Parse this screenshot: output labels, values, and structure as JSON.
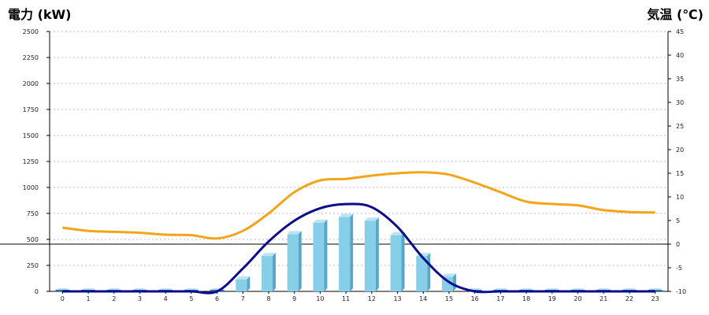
{
  "chart_data": {
    "type": "bar",
    "left_axis_label": "電力 (kW)",
    "right_axis_label": "気温 (℃)",
    "colors": {
      "left_label": "#1a66b3",
      "right_label": "#f07f1a",
      "bars": "#87cfe8",
      "bar_side": "#5aa6c6",
      "bar_top": "#b8e4f3",
      "zero_bar": "#2f6fb0",
      "power_line": "#0d0d8c",
      "temp_line": "#f5a41a",
      "grid": "#bbbbbb"
    },
    "categories": [
      "0",
      "1",
      "2",
      "3",
      "4",
      "5",
      "6",
      "7",
      "8",
      "9",
      "10",
      "11",
      "12",
      "13",
      "14",
      "15",
      "16",
      "17",
      "18",
      "19",
      "20",
      "21",
      "22",
      "23"
    ],
    "y_left": {
      "min": 0,
      "max": 2500,
      "ticks": [
        "0",
        "250",
        "500",
        "750",
        "1000",
        "1250",
        "1500",
        "1750",
        "2000",
        "2250",
        "2500"
      ]
    },
    "y_right": {
      "min": -10,
      "max": 45,
      "ticks": [
        "-10",
        "-5",
        "0",
        "5",
        "10",
        "15",
        "20",
        "25",
        "30",
        "35",
        "40",
        "45"
      ]
    },
    "grid": true,
    "series": [
      {
        "axis": "left",
        "kind": "bar",
        "values": [
          0,
          0,
          0,
          0,
          0,
          0,
          0,
          115,
          340,
          550,
          660,
          715,
          680,
          540,
          340,
          140,
          0,
          0,
          0,
          0,
          0,
          0,
          0,
          0
        ]
      },
      {
        "axis": "left",
        "kind": "line",
        "values": [
          0,
          0,
          0,
          0,
          0,
          0,
          0,
          220,
          480,
          680,
          800,
          840,
          810,
          620,
          320,
          90,
          0,
          0,
          0,
          0,
          0,
          0,
          0,
          0
        ]
      },
      {
        "axis": "right",
        "kind": "line",
        "values": [
          3.5,
          2.8,
          2.6,
          2.4,
          2.0,
          1.9,
          1.2,
          2.8,
          6.5,
          11.0,
          13.5,
          13.8,
          14.5,
          15.0,
          15.2,
          14.7,
          13.0,
          11.0,
          9.0,
          8.5,
          8.2,
          7.2,
          6.8,
          6.7
        ]
      }
    ]
  }
}
